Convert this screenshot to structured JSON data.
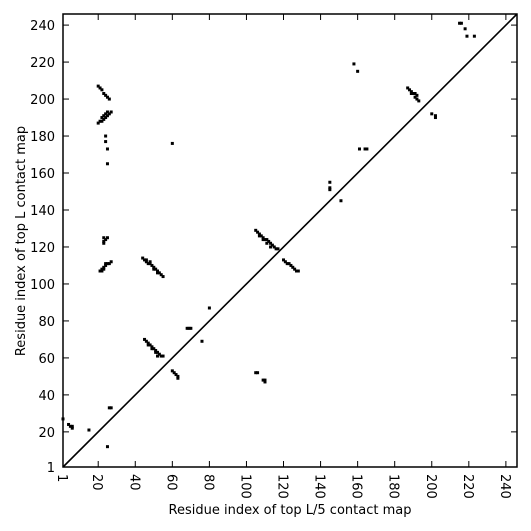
{
  "chart_data": {
    "type": "scatter",
    "x_label": "Residue index of top L/5 contact map",
    "y_label": "Residue index of top L contact map",
    "xlim": [
      1,
      246
    ],
    "ylim": [
      1,
      246
    ],
    "xticks": [
      1,
      20,
      40,
      60,
      80,
      100,
      120,
      140,
      160,
      180,
      200,
      220,
      240
    ],
    "yticks": [
      1,
      20,
      40,
      60,
      80,
      100,
      120,
      140,
      160,
      180,
      200,
      220,
      240
    ],
    "color": "#000000",
    "x": [
      20,
      21,
      22,
      23,
      24,
      25,
      26,
      20,
      21,
      22,
      23,
      24,
      25,
      26,
      27,
      22,
      23,
      24,
      25,
      24,
      24,
      25,
      25,
      23,
      24,
      23,
      23,
      25,
      21,
      22,
      23,
      24,
      25,
      22,
      23,
      24,
      26,
      27,
      60,
      44,
      45,
      46,
      47,
      48,
      49,
      50,
      51,
      52,
      53,
      54,
      55,
      46,
      48,
      50,
      52,
      45,
      46,
      47,
      48,
      49,
      50,
      51,
      52,
      53,
      54,
      55,
      47,
      49,
      51,
      52,
      60,
      61,
      62,
      63,
      63,
      68,
      69,
      70,
      80,
      76,
      1,
      4,
      5,
      6,
      6,
      15,
      27,
      26,
      25,
      105,
      106,
      107,
      108,
      109,
      110,
      111,
      112,
      113,
      114,
      115,
      116,
      117,
      107,
      109,
      111,
      113,
      120,
      121,
      122,
      123,
      124,
      125,
      126,
      127,
      128,
      105,
      106,
      109,
      110,
      110,
      145,
      145,
      145,
      151,
      158,
      160,
      161,
      164,
      165,
      187,
      188,
      189,
      190,
      191,
      192,
      192,
      193,
      189,
      191,
      200,
      202,
      202,
      215,
      216,
      218,
      219,
      223
    ],
    "y": [
      207,
      206,
      205,
      203,
      202,
      201,
      200,
      187,
      188,
      188,
      189,
      190,
      191,
      192,
      193,
      190,
      191,
      192,
      193,
      180,
      177,
      173,
      165,
      125,
      124,
      123,
      122,
      125,
      107,
      108,
      109,
      110,
      111,
      107,
      108,
      111,
      111,
      112,
      176,
      114,
      113,
      112,
      111,
      111,
      110,
      109,
      108,
      107,
      106,
      105,
      104,
      113,
      112,
      108,
      106,
      70,
      69,
      68,
      67,
      66,
      65,
      64,
      63,
      62,
      61,
      61,
      67,
      65,
      63,
      61,
      53,
      52,
      51,
      50,
      49,
      76,
      76,
      76,
      87,
      69,
      27,
      24,
      23,
      22,
      23,
      21,
      33,
      33,
      12,
      129,
      128,
      127,
      126,
      125,
      124,
      124,
      123,
      122,
      121,
      120,
      119,
      119,
      126,
      124,
      122,
      120,
      113,
      112,
      111,
      111,
      110,
      109,
      108,
      107,
      107,
      52,
      52,
      48,
      47,
      48,
      155,
      152,
      151,
      145,
      219,
      215,
      173,
      173,
      173,
      206,
      205,
      204,
      203,
      203,
      202,
      200,
      199,
      203,
      201,
      192,
      191,
      190,
      241,
      241,
      238,
      234,
      234
    ]
  }
}
